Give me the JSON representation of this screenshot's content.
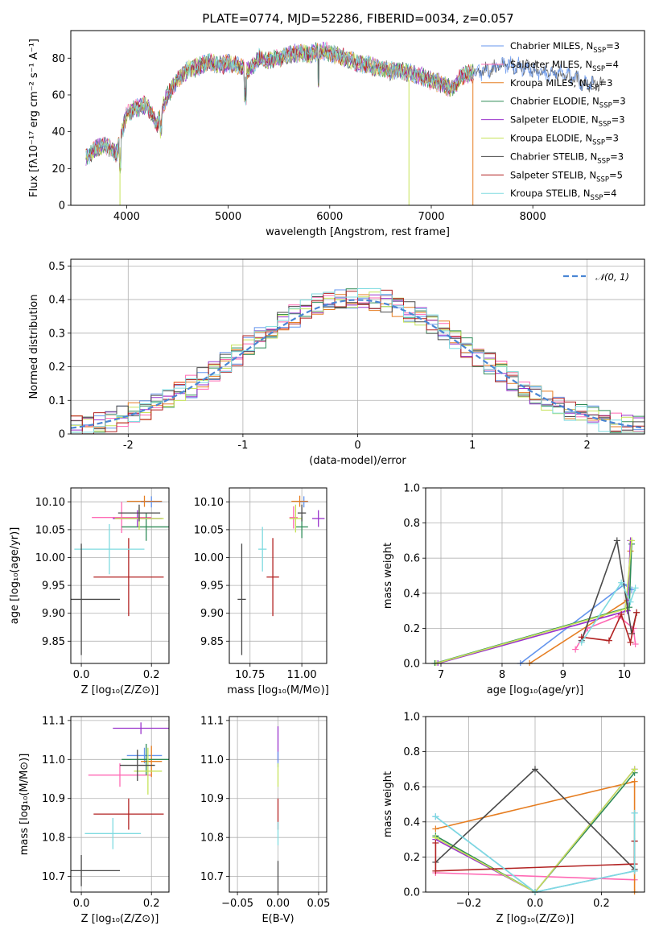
{
  "title": "PLATE=0774, MJD=52286, FIBERID=0034, z=0.057",
  "colors": {
    "Chabrier MILES": "#6495ed",
    "Salpeter MILES": "#ff69b4",
    "Kroupa MILES": "#e67e22",
    "Chabrier ELODIE": "#2e8b57",
    "Salpeter ELODIE": "#9932cc",
    "Kroupa ELODIE": "#c6e35a",
    "Chabrier STELIB": "#4a4a4a",
    "Salpeter STELIB": "#b22222",
    "Kroupa STELIB": "#7fdbe0"
  },
  "chart_data": [
    {
      "id": "spectrum",
      "type": "line",
      "xlabel": "wavelength [Angstrom, rest frame]",
      "ylabel": "Flux [fλ10⁻¹⁷ erg cm⁻² s⁻¹ A⁻¹]",
      "xlim": [
        3450,
        9100
      ],
      "ylim": [
        0,
        95
      ],
      "xticks": [
        4000,
        5000,
        6000,
        7000,
        8000
      ],
      "yticks": [
        0,
        20,
        40,
        60,
        80
      ],
      "legend_position": "top-right",
      "series": [
        {
          "name": "Chabrier MILES, N_SSP=3",
          "label": {
            "pre": "Chabrier MILES, N",
            "sub": "SSP",
            "post": "=3"
          }
        },
        {
          "name": "Salpeter MILES, N_SSP=4",
          "label": {
            "pre": "Salpeter MILES, N",
            "sub": "SSP",
            "post": "=4"
          }
        },
        {
          "name": "Kroupa MILES, N_SSP=3",
          "label": {
            "pre": "Kroupa MILES, N",
            "sub": "SSP",
            "post": "=3"
          }
        },
        {
          "name": "Chabrier ELODIE, N_SSP=3",
          "label": {
            "pre": "Chabrier ELODIE, N",
            "sub": "SSP",
            "post": "=3"
          }
        },
        {
          "name": "Salpeter ELODIE, N_SSP=3",
          "label": {
            "pre": "Salpeter ELODIE, N",
            "sub": "SSP",
            "post": "=3"
          }
        },
        {
          "name": "Kroupa ELODIE, N_SSP=3",
          "label": {
            "pre": "Kroupa ELODIE, N",
            "sub": "SSP",
            "post": "=3"
          }
        },
        {
          "name": "Chabrier STELIB, N_SSP=3",
          "label": {
            "pre": "Chabrier STELIB, N",
            "sub": "SSP",
            "post": "=3"
          }
        },
        {
          "name": "Salpeter STELIB, N_SSP=5",
          "label": {
            "pre": "Salpeter STELIB, N",
            "sub": "SSP",
            "post": "=5"
          }
        },
        {
          "name": "Kroupa STELIB, N_SSP=4",
          "label": {
            "pre": "Kroupa STELIB, N",
            "sub": "SSP",
            "post": "=4"
          }
        }
      ],
      "continuum": {
        "x": [
          3600,
          3700,
          3800,
          3900,
          4000,
          4100,
          4200,
          4300,
          4400,
          4500,
          4600,
          4700,
          4800,
          4900,
          5000,
          5100,
          5200,
          5300,
          5400,
          5500,
          5600,
          5700,
          5800,
          5900,
          6000,
          6100,
          6200,
          6300,
          6400,
          6500,
          6600,
          6700,
          6800,
          6900,
          7000,
          7100,
          7200,
          7300,
          7400,
          7500,
          7600,
          7700,
          7800,
          7900,
          8000,
          8100,
          8200,
          8300,
          8400,
          8500,
          8600,
          8700
        ],
        "y": [
          26,
          31,
          33,
          28,
          50,
          53,
          55,
          44,
          60,
          68,
          74,
          75,
          78,
          76,
          77,
          76,
          73,
          80,
          79,
          80,
          82,
          83,
          82,
          84,
          83,
          81,
          79,
          77,
          76,
          74,
          73,
          73,
          72,
          70,
          68,
          66,
          63,
          70,
          72,
          73,
          74,
          77,
          76,
          75,
          74,
          72,
          72,
          71,
          69,
          67,
          66,
          66
        ]
      },
      "dips": [
        {
          "x": 3934,
          "y": 0,
          "series": 5
        },
        {
          "x": 6780,
          "y": 0,
          "series": 5
        },
        {
          "x": 7410,
          "y": 0,
          "series": 2
        },
        {
          "x": 5170,
          "y": 57,
          "series": 6
        },
        {
          "x": 5890,
          "y": 65,
          "series": 6
        }
      ]
    },
    {
      "id": "residuals",
      "type": "histogram",
      "xlabel": "(data-model)/error",
      "ylabel": "Normed distribution",
      "xlim": [
        -2.5,
        2.5
      ],
      "ylim": [
        0,
        0.52
      ],
      "xticks": [
        -2,
        -1,
        0,
        1,
        2
      ],
      "yticks": [
        0.0,
        0.1,
        0.2,
        0.3,
        0.4,
        0.5
      ],
      "bin_width": 0.1,
      "reference": {
        "name": "N(0,1)",
        "label": "𝒩(0, 1)"
      },
      "legend_position": "top-right"
    },
    {
      "id": "age-vs-Z",
      "type": "scatter",
      "xlabel": "Z [log₁₀(Z/Z⊙)]",
      "ylabel": "age  [log₁₀(age/yr)]",
      "xlim": [
        -0.03,
        0.25
      ],
      "ylim": [
        9.81,
        10.125
      ],
      "xticks": [
        0.0,
        0.2
      ],
      "xticklabels": [
        "0.0",
        "0.2"
      ],
      "yticks": [
        9.85,
        9.9,
        9.95,
        10.0,
        10.05,
        10.1
      ],
      "yticklabels": [
        "9.85",
        "9.90",
        "9.95",
        "10.00",
        "10.05",
        "10.10"
      ],
      "points": [
        {
          "series": 0,
          "x": 0.2,
          "xerr": 0.03,
          "y": 10.1,
          "yerr": 0.01
        },
        {
          "series": 1,
          "x": 0.115,
          "xerr": 0.085,
          "y": 10.072,
          "yerr": 0.028
        },
        {
          "series": 2,
          "x": 0.18,
          "xerr": 0.05,
          "y": 10.101,
          "yerr": 0.01
        },
        {
          "series": 3,
          "x": 0.185,
          "xerr": 0.07,
          "y": 10.055,
          "yerr": 0.025
        },
        {
          "series": 4,
          "x": 0.16,
          "xerr": 0.07,
          "y": 10.07,
          "yerr": 0.015
        },
        {
          "series": 5,
          "x": 0.165,
          "xerr": 0.07,
          "y": 10.07,
          "yerr": 0.02
        },
        {
          "series": 6,
          "x": 0.165,
          "xerr": 0.06,
          "y": 10.08,
          "yerr": 0.015
        },
        {
          "series": 7,
          "x": 0.135,
          "xerr": 0.1,
          "y": 9.965,
          "yerr": 0.07
        },
        {
          "series": 8,
          "x": 0.08,
          "xerr": 0.1,
          "y": 10.015,
          "yerr": 0.045
        },
        {
          "series": 6,
          "x": 0.0,
          "xerr": 0.11,
          "y": 9.925,
          "yerr": 0.1
        }
      ]
    },
    {
      "id": "age-vs-mass",
      "type": "scatter",
      "xlabel": "mass [log₁₀(M/M⊙)]",
      "ylabel": "",
      "xlim": [
        10.65,
        11.12
      ],
      "ylim": [
        9.81,
        10.125
      ],
      "xticks": [
        10.75,
        11.0
      ],
      "xticklabels": [
        "10.75",
        "11.00"
      ],
      "yticks": [
        9.85,
        9.9,
        9.95,
        10.0,
        10.05,
        10.1
      ],
      "yticklabels": [
        "9.85",
        "9.90",
        "9.95",
        "10.00",
        "10.05",
        "10.10"
      ],
      "points": [
        {
          "series": 0,
          "x": 11.01,
          "xerr": 0.02,
          "y": 10.1,
          "yerr": 0.01
        },
        {
          "series": 1,
          "x": 10.96,
          "xerr": 0.02,
          "y": 10.072,
          "yerr": 0.02
        },
        {
          "series": 2,
          "x": 10.99,
          "xerr": 0.04,
          "y": 10.101,
          "yerr": 0.01
        },
        {
          "series": 3,
          "x": 11.0,
          "xerr": 0.03,
          "y": 10.055,
          "yerr": 0.02
        },
        {
          "series": 4,
          "x": 11.08,
          "xerr": 0.03,
          "y": 10.07,
          "yerr": 0.015
        },
        {
          "series": 5,
          "x": 10.97,
          "xerr": 0.03,
          "y": 10.07,
          "yerr": 0.025
        },
        {
          "series": 6,
          "x": 11.0,
          "xerr": 0.02,
          "y": 10.08,
          "yerr": 0.015
        },
        {
          "series": 7,
          "x": 10.86,
          "xerr": 0.03,
          "y": 9.965,
          "yerr": 0.07
        },
        {
          "series": 8,
          "x": 10.81,
          "xerr": 0.02,
          "y": 10.015,
          "yerr": 0.04
        },
        {
          "series": 6,
          "x": 10.71,
          "xerr": 0.02,
          "y": 9.925,
          "yerr": 0.1
        }
      ]
    },
    {
      "id": "weights-vs-age",
      "type": "line",
      "xlabel": "age  [log₁₀(age/yr)]",
      "ylabel": "mass weight",
      "xlim": [
        6.75,
        10.33
      ],
      "ylim": [
        0,
        1
      ],
      "xticks": [
        7,
        8,
        9,
        10
      ],
      "xticklabels": [
        "7",
        "8",
        "9",
        "10"
      ],
      "yticks": [
        0.0,
        0.2,
        0.4,
        0.6,
        0.8,
        1.0
      ],
      "yticklabels": [
        "0.0",
        "0.2",
        "0.4",
        "0.6",
        "0.8",
        "1.0"
      ],
      "series": [
        {
          "series": 0,
          "x": [
            8.3,
            10.0,
            10.12
          ],
          "y": [
            0.0,
            0.45,
            0.42
          ]
        },
        {
          "series": 1,
          "x": [
            9.2,
            9.4,
            9.9,
            10.15,
            10.18
          ],
          "y": [
            0.08,
            0.2,
            0.27,
            0.2,
            0.11
          ]
        },
        {
          "series": 2,
          "x": [
            8.45,
            10.05,
            10.1
          ],
          "y": [
            0.0,
            0.36,
            0.64
          ]
        },
        {
          "series": 3,
          "x": [
            6.9,
            10.08,
            10.12
          ],
          "y": [
            0.0,
            0.32,
            0.68
          ]
        },
        {
          "series": 4,
          "x": [
            6.95,
            10.05,
            10.1
          ],
          "y": [
            0.0,
            0.3,
            0.7
          ]
        },
        {
          "series": 5,
          "x": [
            6.92,
            10.02,
            10.12
          ],
          "y": [
            0.0,
            0.31,
            0.7
          ]
        },
        {
          "series": 6,
          "x": [
            9.3,
            9.88,
            10.12,
            10.2
          ],
          "y": [
            0.13,
            0.7,
            0.17,
            0.29
          ]
        },
        {
          "series": 7,
          "x": [
            9.3,
            9.75,
            9.95,
            10.1,
            10.2
          ],
          "y": [
            0.15,
            0.13,
            0.28,
            0.12,
            0.29
          ]
        },
        {
          "series": 8,
          "x": [
            9.3,
            9.95,
            10.1,
            10.18
          ],
          "y": [
            0.12,
            0.46,
            0.35,
            0.43
          ]
        }
      ]
    },
    {
      "id": "mass-vs-Z",
      "type": "scatter",
      "xlabel": "Z [log₁₀(Z/Z⊙)]",
      "ylabel": "mass [log₁₀(M/M⊙)]",
      "xlim": [
        -0.03,
        0.25
      ],
      "ylim": [
        10.66,
        11.11
      ],
      "xticks": [
        0.0,
        0.2
      ],
      "xticklabels": [
        "0.0",
        "0.2"
      ],
      "yticks": [
        10.7,
        10.8,
        10.9,
        11.0,
        11.1
      ],
      "yticklabels": [
        "10.7",
        "10.8",
        "10.9",
        "11.0",
        "11.1"
      ],
      "points": [
        {
          "series": 0,
          "x": 0.18,
          "xerr": 0.05,
          "y": 11.01,
          "yerr": 0.02
        },
        {
          "series": 1,
          "x": 0.11,
          "xerr": 0.09,
          "y": 10.96,
          "yerr": 0.03
        },
        {
          "series": 2,
          "x": 0.2,
          "xerr": 0.03,
          "y": 10.995,
          "yerr": 0.04
        },
        {
          "series": 3,
          "x": 0.185,
          "xerr": 0.07,
          "y": 11.0,
          "yerr": 0.04
        },
        {
          "series": 4,
          "x": 0.17,
          "xerr": 0.08,
          "y": 11.08,
          "yerr": 0.015
        },
        {
          "series": 5,
          "x": 0.19,
          "xerr": 0.04,
          "y": 10.97,
          "yerr": 0.06
        },
        {
          "series": 6,
          "x": 0.16,
          "xerr": 0.05,
          "y": 10.985,
          "yerr": 0.04
        },
        {
          "series": 7,
          "x": 0.135,
          "xerr": 0.1,
          "y": 10.86,
          "yerr": 0.04
        },
        {
          "series": 8,
          "x": 0.09,
          "xerr": 0.08,
          "y": 10.81,
          "yerr": 0.04
        },
        {
          "series": 6,
          "x": 0.0,
          "xerr": 0.11,
          "y": 10.715,
          "yerr": 0.04
        }
      ]
    },
    {
      "id": "mass-vs-ebv",
      "type": "scatter",
      "xlabel": "E(B-V)",
      "ylabel": "",
      "xlim": [
        -0.06,
        0.06
      ],
      "ylim": [
        10.66,
        11.11
      ],
      "xticks": [
        -0.05,
        0.0,
        0.05
      ],
      "xticklabels": [
        "−0.05",
        "0.00",
        "0.05"
      ],
      "yticks": [
        10.7,
        10.8,
        10.9,
        11.0,
        11.1
      ],
      "yticklabels": [
        "10.7",
        "10.8",
        "10.9",
        "11.0",
        "11.1"
      ],
      "points": [
        {
          "series": 4,
          "x": 0.0,
          "xerr": 0.0,
          "y": 11.04,
          "yerr": 0.045
        },
        {
          "series": 0,
          "x": 0.0,
          "xerr": 0.0,
          "y": 11.0,
          "yerr": 0.02
        },
        {
          "series": 5,
          "x": 0.0,
          "xerr": 0.0,
          "y": 10.96,
          "yerr": 0.03
        },
        {
          "series": 7,
          "x": 0.0,
          "xerr": 0.0,
          "y": 10.86,
          "yerr": 0.04
        },
        {
          "series": 8,
          "x": 0.0,
          "xerr": 0.0,
          "y": 10.81,
          "yerr": 0.03
        },
        {
          "series": 6,
          "x": 0.0,
          "xerr": 0.0,
          "y": 10.7,
          "yerr": 0.04
        }
      ]
    },
    {
      "id": "weights-vs-Z",
      "type": "line",
      "xlabel": "Z [log₁₀(Z/Z⊙)]",
      "ylabel": "mass weight",
      "xlim": [
        -0.33,
        0.33
      ],
      "ylim": [
        0,
        1
      ],
      "xticks": [
        -0.2,
        0.0,
        0.2
      ],
      "xticklabels": [
        "−0.2",
        "0.0",
        "0.2"
      ],
      "yticks": [
        0.0,
        0.2,
        0.4,
        0.6,
        0.8,
        1.0
      ],
      "yticklabels": [
        "0.0",
        "0.2",
        "0.4",
        "0.6",
        "0.8",
        "1.0"
      ],
      "series": [
        {
          "series": 0,
          "x": [
            -0.3,
            0.0,
            0.3,
            0.3
          ],
          "y": [
            0.43,
            0.0,
            0.12,
            0.45
          ]
        },
        {
          "series": 1,
          "x": [
            -0.3,
            0.3
          ],
          "y": [
            0.11,
            0.07
          ]
        },
        {
          "series": 2,
          "x": [
            -0.3,
            0.3,
            0.3
          ],
          "y": [
            0.36,
            0.63,
            0.0
          ]
        },
        {
          "series": 3,
          "x": [
            -0.3,
            0.0,
            0.3
          ],
          "y": [
            0.32,
            0.0,
            0.68
          ]
        },
        {
          "series": 4,
          "x": [
            -0.3,
            0.0,
            0.3
          ],
          "y": [
            0.3,
            0.0,
            0.7
          ]
        },
        {
          "series": 5,
          "x": [
            -0.3,
            0.0,
            0.3
          ],
          "y": [
            0.31,
            0.0,
            0.7
          ]
        },
        {
          "series": 6,
          "x": [
            -0.3,
            0.0,
            0.3,
            0.3
          ],
          "y": [
            0.17,
            0.7,
            0.13,
            0.29
          ]
        },
        {
          "series": 7,
          "x": [
            -0.3,
            -0.3,
            0.3,
            0.3
          ],
          "y": [
            0.28,
            0.12,
            0.16,
            0.29
          ]
        },
        {
          "series": 8,
          "x": [
            -0.3,
            0.0,
            0.3,
            0.3
          ],
          "y": [
            0.43,
            0.0,
            0.12,
            0.45
          ]
        }
      ]
    }
  ]
}
